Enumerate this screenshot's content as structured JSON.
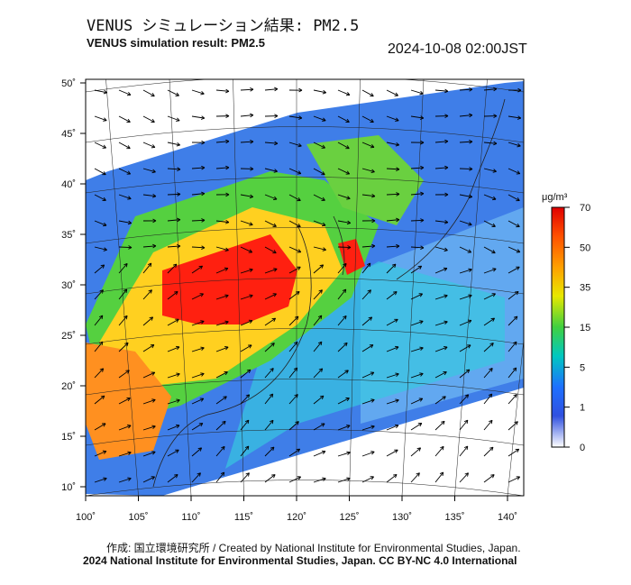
{
  "header": {
    "title_ja": "VENUS シミュレーション結果: PM2.5",
    "title_en": "VENUS simulation result: PM2.5",
    "timestamp": "2024-10-08 02:00JST"
  },
  "map": {
    "lon_ticks": [
      "100˚",
      "105˚",
      "110˚",
      "115˚",
      "120˚",
      "125˚",
      "130˚",
      "135˚",
      "140˚"
    ],
    "lat_ticks": [
      "50˚",
      "45˚",
      "40˚",
      "35˚",
      "30˚",
      "25˚",
      "20˚",
      "15˚",
      "10˚"
    ],
    "land_color": "#ffffff",
    "nodata_color": "#ffffff"
  },
  "colorbar": {
    "unit": "μg/m³",
    "ticks": [
      "70",
      "50",
      "35",
      "15",
      "5",
      "1",
      "0"
    ],
    "colors": [
      "#ff0000",
      "#ff8000",
      "#ffe000",
      "#30d030",
      "#00c8c8",
      "#2060ff",
      "#ffffff"
    ]
  },
  "footer": {
    "credit": "作成: 国立環境研究所 / Created by National Institute for Environmental Studies, Japan.",
    "license": "2024 National Institute for Environmental Studies, Japan. CC BY-NC 4.0 International"
  }
}
